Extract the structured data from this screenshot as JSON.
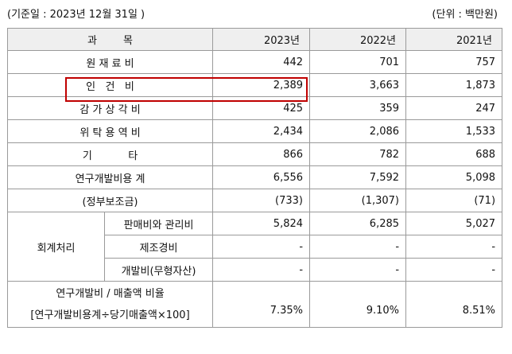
{
  "caption": {
    "base_date": "(기준일 :      2023년 12월 31일    )",
    "unit": "(단위 : 백만원)"
  },
  "header": {
    "item": "과        목",
    "years": [
      "2023년",
      "2022년",
      "2021년"
    ]
  },
  "rows": [
    {
      "label": "원 재 료 비",
      "values": [
        "442",
        "701",
        "757"
      ]
    },
    {
      "label": "인   건   비",
      "values": [
        "2,389",
        "3,663",
        "1,873"
      ]
    },
    {
      "label": "감 가 상 각 비",
      "values": [
        "425",
        "359",
        "247"
      ]
    },
    {
      "label": "위 탁 용 역 비",
      "values": [
        "2,434",
        "2,086",
        "1,533"
      ]
    },
    {
      "label": "기           타",
      "values": [
        "866",
        "782",
        "688"
      ]
    },
    {
      "label": "연구개발비용 계",
      "values": [
        "6,556",
        "7,592",
        "5,098"
      ]
    },
    {
      "label": "(정부보조금)",
      "values": [
        "(733)",
        "(1,307)",
        "(71)"
      ]
    }
  ],
  "accounting": {
    "group_label": "회계처리",
    "rows": [
      {
        "label": "판매비와 관리비",
        "values": [
          "5,824",
          "6,285",
          "5,027"
        ]
      },
      {
        "label": "제조경비",
        "values": [
          "-",
          "-",
          "-"
        ]
      },
      {
        "label": "개발비(무형자산)",
        "values": [
          "-",
          "-",
          "-"
        ]
      }
    ]
  },
  "ratio": {
    "label_line1": "연구개발비 / 매출액 비율",
    "label_line2": "[연구개발비용계÷당기매출액×100]",
    "values": [
      "7.35%",
      "9.10%",
      "8.51%"
    ]
  },
  "highlight_color": "#c00000"
}
